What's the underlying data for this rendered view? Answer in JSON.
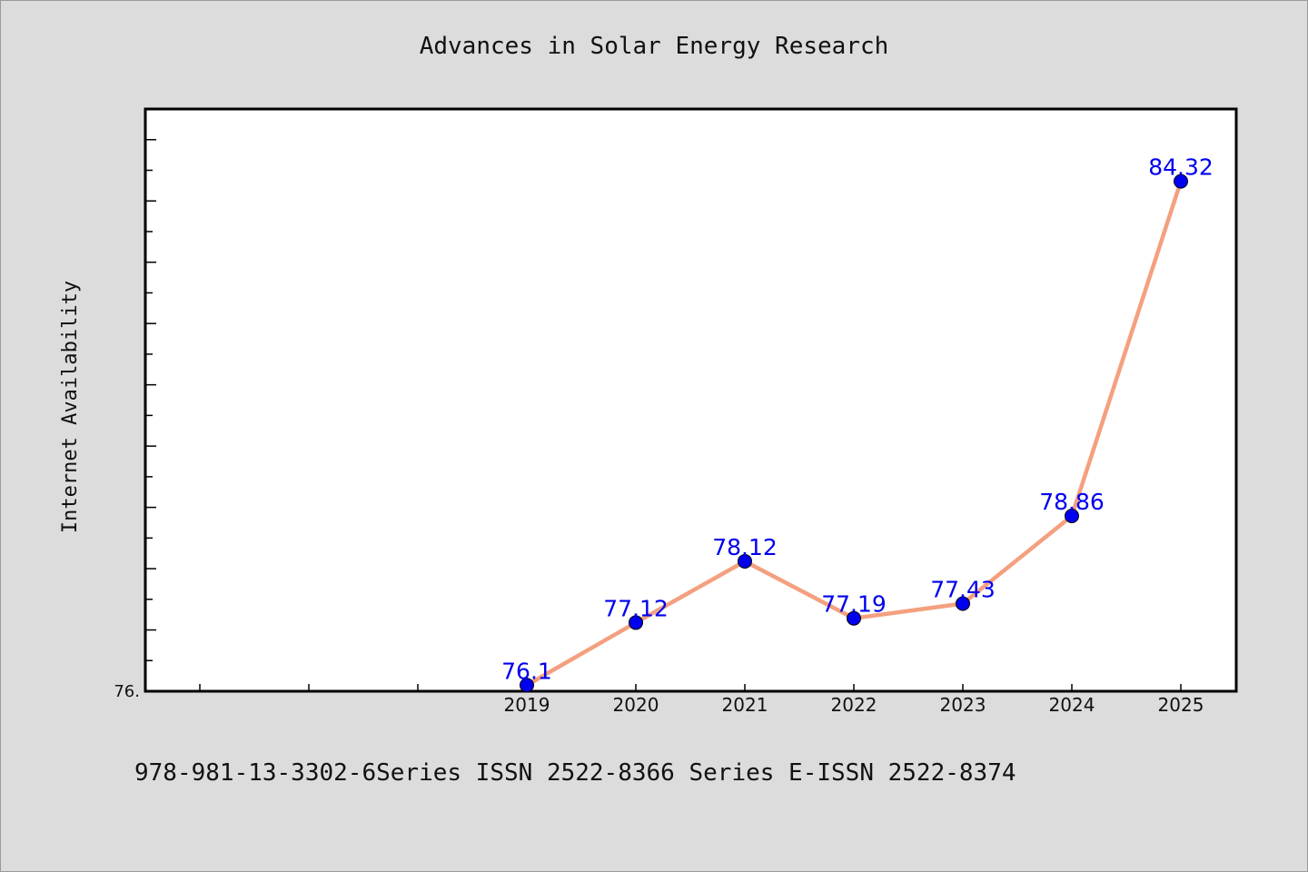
{
  "chart_data": {
    "type": "line",
    "title": "Advances in Solar Energy Research",
    "xlabel": "",
    "ylabel": "Internet Availability",
    "categories": [
      "2019",
      "2020",
      "2021",
      "2022",
      "2023",
      "2024",
      "2025"
    ],
    "series": [
      {
        "values": [
          76.1,
          77.12,
          78.12,
          77.19,
          77.43,
          78.86,
          84.32
        ],
        "labels": [
          "76.1",
          "77.12",
          "78.12",
          "77.19",
          "77.43",
          "78.86",
          "84.32"
        ]
      }
    ],
    "ylim": [
      76.0,
      85.5
    ],
    "y_tick_label": "76.",
    "grid": false,
    "legend": "none",
    "colors": {
      "line": "#f4a07f",
      "marker": "#0000ee",
      "label": "#0000ee",
      "plot_bg": "#ffffff",
      "page_bg": "#dcdcdc"
    }
  },
  "footer": {
    "text": "978-981-13-3302-6Series ISSN 2522-8366 Series E-ISSN 2522-8374"
  }
}
